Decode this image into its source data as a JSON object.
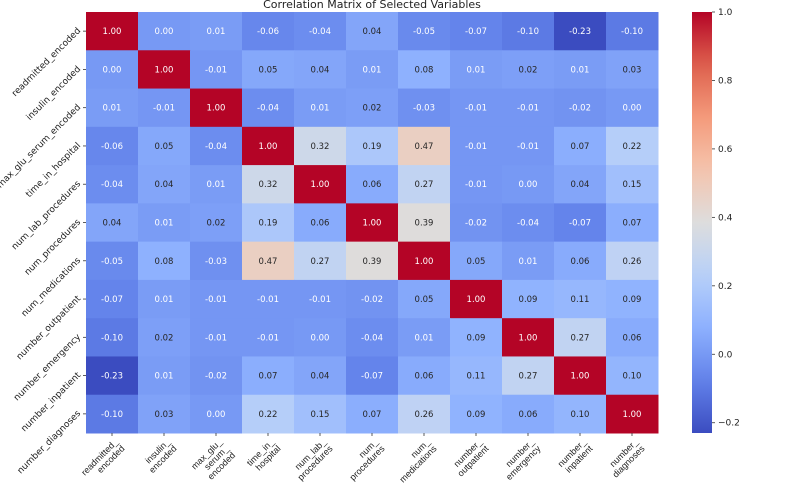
{
  "chart_data": {
    "type": "heatmap",
    "title": "Correlation Matrix of Selected Variables",
    "colormap": "coolwarm",
    "color_range": [
      -0.23,
      1.0
    ],
    "colorbar_ticks": [
      "1.0",
      "0.8",
      "0.6",
      "0.4",
      "0.2",
      "0.0",
      "-0.2"
    ],
    "labels": [
      "readmitted_encoded",
      "insulin_encoded",
      "max_glu_serum_encoded",
      "time_in_hospital",
      "num_lab_procedures",
      "num_procedures",
      "num_medications",
      "number_outpatient",
      "number_emergency",
      "number_inpatient",
      "number_diagnoses"
    ],
    "values": [
      [
        1.0,
        -0.0,
        0.01,
        -0.06,
        -0.04,
        0.04,
        -0.05,
        -0.07,
        -0.1,
        -0.23,
        -0.1
      ],
      [
        -0.0,
        1.0,
        -0.01,
        0.05,
        0.04,
        0.01,
        0.08,
        0.01,
        0.02,
        0.01,
        0.03
      ],
      [
        0.01,
        -0.01,
        1.0,
        -0.04,
        0.01,
        0.02,
        -0.03,
        -0.01,
        -0.01,
        -0.02,
        0.0
      ],
      [
        -0.06,
        0.05,
        -0.04,
        1.0,
        0.32,
        0.19,
        0.47,
        -0.01,
        -0.01,
        0.07,
        0.22
      ],
      [
        -0.04,
        0.04,
        0.01,
        0.32,
        1.0,
        0.06,
        0.27,
        -0.01,
        -0.0,
        0.04,
        0.15
      ],
      [
        0.04,
        0.01,
        0.02,
        0.19,
        0.06,
        1.0,
        0.39,
        -0.02,
        -0.04,
        -0.07,
        0.07
      ],
      [
        -0.05,
        0.08,
        -0.03,
        0.47,
        0.27,
        0.39,
        1.0,
        0.05,
        0.01,
        0.06,
        0.26
      ],
      [
        -0.07,
        0.01,
        -0.01,
        -0.01,
        -0.01,
        -0.02,
        0.05,
        1.0,
        0.09,
        0.11,
        0.09
      ],
      [
        -0.1,
        0.02,
        -0.01,
        -0.01,
        -0.0,
        -0.04,
        0.01,
        0.09,
        1.0,
        0.27,
        0.06
      ],
      [
        -0.23,
        0.01,
        -0.02,
        0.07,
        0.04,
        -0.07,
        0.06,
        0.11,
        0.27,
        1.0,
        0.1
      ],
      [
        -0.1,
        0.03,
        0.0,
        0.22,
        0.15,
        0.07,
        0.26,
        0.09,
        0.06,
        0.1,
        1.0
      ]
    ]
  }
}
